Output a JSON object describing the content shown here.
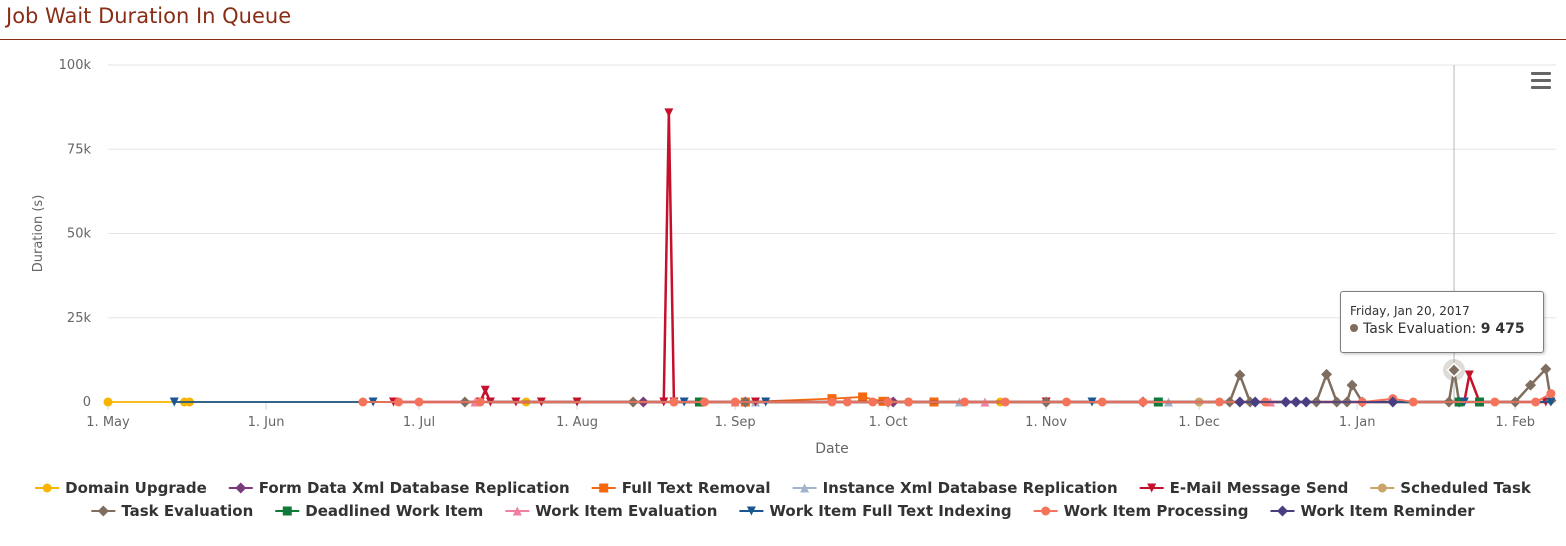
{
  "page": {
    "title": "Job Wait Duration In Queue"
  },
  "tooltip": {
    "date": "Friday, Jan 20, 2017",
    "series": "Task Evaluation",
    "value": "9 475",
    "color": "#7f6e5f"
  },
  "chart_data": {
    "type": "line",
    "xlabel": "Date",
    "ylabel": "Duration (s)",
    "ylim": [
      0,
      100000
    ],
    "xlim": [
      "2016-05-01",
      "2017-02-09"
    ],
    "y_ticks": [
      0,
      25000,
      50000,
      75000,
      100000
    ],
    "y_tick_labels": [
      "0",
      "25k",
      "50k",
      "75k",
      "100k"
    ],
    "x_ticks": [
      "2016-05-01",
      "2016-06-01",
      "2016-07-01",
      "2016-08-01",
      "2016-09-01",
      "2016-10-01",
      "2016-11-01",
      "2016-12-01",
      "2017-01-01",
      "2017-02-01"
    ],
    "x_tick_labels": [
      "1. May",
      "1. Jun",
      "1. Jul",
      "1. Aug",
      "1. Sep",
      "1. Oct",
      "1. Nov",
      "1. Dec",
      "1. Jan",
      "1. Feb"
    ],
    "grid": true,
    "legend_position": "bottom",
    "crosshair_date": "2017-01-20",
    "series": [
      {
        "name": "Domain Upgrade",
        "color": "#f7b500",
        "marker": "circle",
        "points": [
          [
            "2016-05-01",
            0
          ],
          [
            "2016-05-16",
            0
          ],
          [
            "2016-05-17",
            0
          ],
          [
            "2016-07-22",
            0
          ],
          [
            "2016-10-23",
            0
          ]
        ]
      },
      {
        "name": "Form Data Xml Database Replication",
        "color": "#7b3a7e",
        "marker": "diamond",
        "points": [
          [
            "2016-08-14",
            0
          ],
          [
            "2016-09-03",
            0
          ],
          [
            "2016-10-02",
            0
          ],
          [
            "2016-11-20",
            0
          ]
        ]
      },
      {
        "name": "Full Text Removal",
        "color": "#f46810",
        "marker": "square",
        "points": [
          [
            "2016-09-03",
            0
          ],
          [
            "2016-09-20",
            1000
          ],
          [
            "2016-09-26",
            1500
          ],
          [
            "2016-09-30",
            200
          ],
          [
            "2016-10-10",
            0
          ]
        ]
      },
      {
        "name": "Instance Xml Database Replication",
        "color": "#a1b4cc",
        "marker": "triangle",
        "points": [
          [
            "2016-09-05",
            0
          ],
          [
            "2016-10-15",
            0
          ],
          [
            "2016-11-25",
            0
          ]
        ]
      },
      {
        "name": "E-Mail Message Send",
        "color": "#c5102c",
        "marker": "triangle-down",
        "points": [
          [
            "2016-06-26",
            0
          ],
          [
            "2016-07-13",
            0
          ],
          [
            "2016-07-14",
            3500
          ],
          [
            "2016-07-15",
            0
          ],
          [
            "2016-07-20",
            0
          ],
          [
            "2016-07-25",
            0
          ],
          [
            "2016-08-01",
            0
          ],
          [
            "2016-08-18",
            0
          ],
          [
            "2016-08-19",
            85800
          ],
          [
            "2016-08-20",
            0
          ],
          [
            "2016-09-05",
            0
          ],
          [
            "2016-11-01",
            0
          ],
          [
            "2017-01-22",
            0
          ],
          [
            "2017-01-23",
            8000
          ],
          [
            "2017-01-25",
            0
          ],
          [
            "2017-02-07",
            0
          ]
        ]
      },
      {
        "name": "Scheduled Task",
        "color": "#caa46a",
        "marker": "circle",
        "points": [
          [
            "2016-08-20",
            0
          ],
          [
            "2016-10-05",
            0
          ],
          [
            "2016-12-01",
            0
          ]
        ]
      },
      {
        "name": "Task Evaluation",
        "color": "#7f6e5f",
        "marker": "diamond",
        "points": [
          [
            "2016-07-10",
            0
          ],
          [
            "2016-08-12",
            0
          ],
          [
            "2016-09-03",
            0
          ],
          [
            "2016-10-01",
            0
          ],
          [
            "2016-11-01",
            0
          ],
          [
            "2016-12-07",
            0
          ],
          [
            "2016-12-09",
            8000
          ],
          [
            "2016-12-11",
            0
          ],
          [
            "2016-12-24",
            0
          ],
          [
            "2016-12-26",
            8200
          ],
          [
            "2016-12-28",
            0
          ],
          [
            "2016-12-30",
            0
          ],
          [
            "2016-12-31",
            5000
          ],
          [
            "2017-01-02",
            0
          ],
          [
            "2017-01-19",
            0
          ],
          [
            "2017-01-20",
            9475
          ],
          [
            "2017-01-21",
            0
          ],
          [
            "2017-02-01",
            0
          ],
          [
            "2017-02-04",
            5000
          ],
          [
            "2017-02-07",
            9800
          ],
          [
            "2017-02-08",
            500
          ]
        ]
      },
      {
        "name": "Deadlined Work Item",
        "color": "#0f7a3a",
        "marker": "square",
        "points": [
          [
            "2016-08-25",
            0
          ],
          [
            "2016-11-23",
            0
          ],
          [
            "2017-01-21",
            0
          ],
          [
            "2017-01-25",
            0
          ]
        ]
      },
      {
        "name": "Work Item Evaluation",
        "color": "#f17fa0",
        "marker": "triangle",
        "points": [
          [
            "2016-07-12",
            0
          ],
          [
            "2016-09-01",
            0
          ],
          [
            "2016-10-20",
            0
          ],
          [
            "2016-12-15",
            0
          ]
        ]
      },
      {
        "name": "Work Item Full Text Indexing",
        "color": "#1a5690",
        "marker": "triangle-down",
        "points": [
          [
            "2016-05-14",
            0
          ],
          [
            "2016-06-22",
            0
          ],
          [
            "2016-08-22",
            0
          ],
          [
            "2016-09-07",
            0
          ],
          [
            "2016-11-10",
            0
          ],
          [
            "2017-01-22",
            0
          ],
          [
            "2017-02-08",
            0
          ]
        ]
      },
      {
        "name": "Work Item Processing",
        "color": "#f4735a",
        "marker": "circle",
        "points": [
          [
            "2016-06-20",
            0
          ],
          [
            "2016-06-27",
            0
          ],
          [
            "2016-07-01",
            0
          ],
          [
            "2016-07-13",
            0
          ],
          [
            "2016-08-20",
            0
          ],
          [
            "2016-08-26",
            0
          ],
          [
            "2016-09-01",
            0
          ],
          [
            "2016-09-20",
            0
          ],
          [
            "2016-09-23",
            0
          ],
          [
            "2016-09-28",
            0
          ],
          [
            "2016-10-01",
            0
          ],
          [
            "2016-10-05",
            0
          ],
          [
            "2016-10-16",
            0
          ],
          [
            "2016-10-24",
            0
          ],
          [
            "2016-11-05",
            0
          ],
          [
            "2016-11-12",
            0
          ],
          [
            "2016-11-20",
            0
          ],
          [
            "2016-12-05",
            0
          ],
          [
            "2016-12-14",
            0
          ],
          [
            "2017-01-02",
            0
          ],
          [
            "2017-01-08",
            1000
          ],
          [
            "2017-01-12",
            0
          ],
          [
            "2017-01-28",
            0
          ],
          [
            "2017-02-05",
            0
          ],
          [
            "2017-02-08",
            2500
          ]
        ]
      },
      {
        "name": "Work Item Reminder",
        "color": "#4a3e82",
        "marker": "diamond",
        "points": [
          [
            "2016-12-09",
            0
          ],
          [
            "2016-12-12",
            0
          ],
          [
            "2016-12-18",
            0
          ],
          [
            "2016-12-20",
            0
          ],
          [
            "2016-12-22",
            0
          ],
          [
            "2017-01-08",
            0
          ]
        ]
      }
    ]
  }
}
